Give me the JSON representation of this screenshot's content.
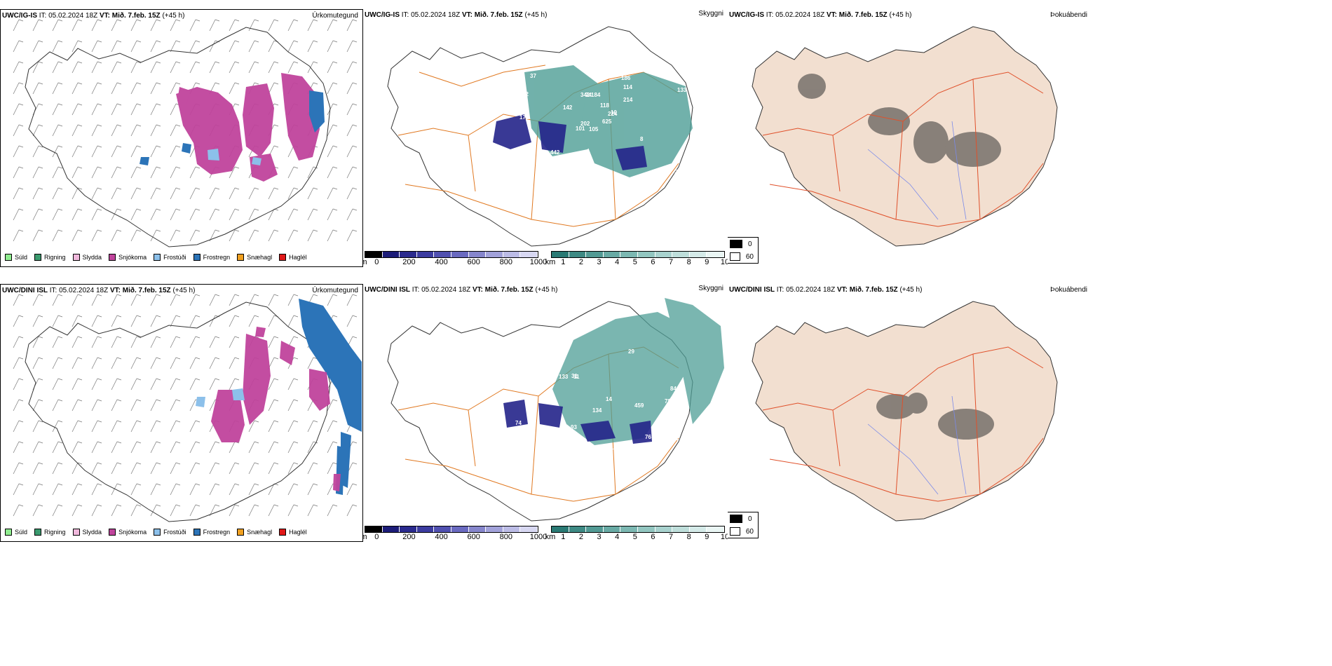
{
  "colors": {
    "snow": "#c0449c",
    "freezing_rain": "#2c74b8",
    "freezing_drizzle": "#8cc0ea",
    "cloud_low": "#1f1f8c",
    "cloud_high": "#2a8a82",
    "land": "#f2dfd0",
    "roads": "#e07820"
  },
  "panels": [
    {
      "model": "UWC/IG-IS",
      "it_label": "IT:",
      "it_value": "05.02.2024 18Z",
      "vt_label": "VT:",
      "vt_value": "Mið. 7.feb. 15Z",
      "lead": "(+45 h)",
      "title": "Úrkomutegund"
    },
    {
      "model": "UWC/IG-IS",
      "it_label": "IT:",
      "it_value": "05.02.2024 18Z",
      "vt_label": "VT:",
      "vt_value": "Mið. 7.feb. 15Z",
      "lead": "(+45 h)",
      "title": "Skyggni"
    },
    {
      "model": "UWC/IG-IS",
      "it_label": "IT:",
      "it_value": "05.02.2024 18Z",
      "vt_label": "VT:",
      "vt_value": "Mið. 7.feb. 15Z",
      "lead": "(+45 h)",
      "title": "Þokuábendi"
    },
    {
      "model": "UWC/DINI ISL",
      "it_label": "IT:",
      "it_value": "05.02.2024 18Z",
      "vt_label": "VT:",
      "vt_value": "Mið. 7.feb. 15Z",
      "lead": "(+45 h)",
      "title": "Úrkomutegund"
    },
    {
      "model": "UWC/DINI ISL",
      "it_label": "IT:",
      "it_value": "05.02.2024 18Z",
      "vt_label": "VT:",
      "vt_value": "Mið. 7.feb. 15Z",
      "lead": "(+45 h)",
      "title": "Skyggni"
    },
    {
      "model": "UWC/DINI ISL",
      "it_label": "IT:",
      "it_value": "05.02.2024 18Z",
      "vt_label": "VT:",
      "vt_value": "Mið. 7.feb. 15Z",
      "lead": "(+45 h)",
      "title": "Þokuábendi"
    }
  ],
  "ptype_legend": [
    {
      "label": "Súld",
      "color": "#90ee90"
    },
    {
      "label": "Rigning",
      "color": "#3a9a6e"
    },
    {
      "label": "Slydda",
      "color": "#f0b8dc"
    },
    {
      "label": "Snjókoma",
      "color": "#c0449c"
    },
    {
      "label": "Frostúði",
      "color": "#8cc0ea"
    },
    {
      "label": "Frostregn",
      "color": "#2c74b8"
    },
    {
      "label": "Snæhagl",
      "color": "#f0a020"
    },
    {
      "label": "Haglél",
      "color": "#e01818"
    }
  ],
  "visibility_m": {
    "unit": "m",
    "ticks": [
      "0",
      "200",
      "400",
      "600",
      "800",
      "1000"
    ],
    "colors": [
      "#000000",
      "#1c1c78",
      "#2a2a8e",
      "#3c3ca0",
      "#5050b0",
      "#6a6ac0",
      "#8686cc",
      "#a2a2da",
      "#bcbce6",
      "#d8d8f2"
    ]
  },
  "visibility_km": {
    "unit": "km",
    "ticks": [
      "1",
      "2",
      "3",
      "4",
      "5",
      "6",
      "7",
      "8",
      "9",
      "10"
    ],
    "colors": [
      "#2a7a74",
      "#3e8a84",
      "#529a94",
      "#68aaa4",
      "#7cb8b2",
      "#92c6c0",
      "#a8d2ce",
      "#bededa",
      "#d4eae8",
      "#eaf6f4"
    ]
  },
  "cloud_legend": [
    "0",
    "60"
  ],
  "top_vis_labels": [
    "105",
    "296",
    "202",
    "61",
    "224",
    "442",
    "186",
    "184",
    "114",
    "625",
    "37",
    "288",
    "172",
    "133",
    "101",
    "214",
    "8",
    "342",
    "118",
    "176",
    "142",
    "85",
    "64",
    "74",
    "10",
    "8",
    "12"
  ],
  "bottom_vis_labels": [
    "459",
    "78",
    "169",
    "27",
    "11",
    "76",
    "74",
    "29",
    "133",
    "195",
    "119",
    "81",
    "157",
    "121",
    "93",
    "84",
    "134",
    "14",
    "31"
  ]
}
